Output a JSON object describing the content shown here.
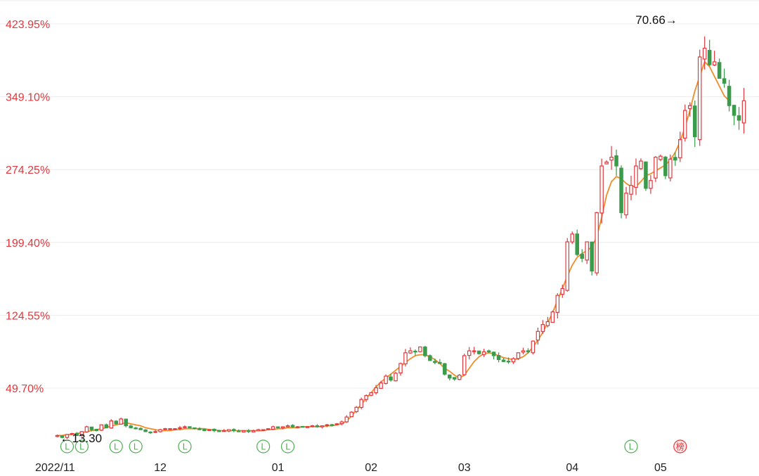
{
  "chart_data": {
    "type": "candlestick",
    "y_axis": {
      "ticks": [
        "423.95%",
        "349.10%",
        "274.25%",
        "199.40%",
        "124.55%",
        "49.70%"
      ],
      "tick_values": [
        423.95,
        349.1,
        274.25,
        199.4,
        124.55,
        49.7
      ],
      "ylim": [
        -18.0,
        447.0
      ],
      "color": "#e0393e"
    },
    "x_axis": {
      "labels": [
        "2022/11",
        "12",
        "01",
        "02",
        "03",
        "04",
        "05"
      ],
      "label_indices": [
        0,
        21,
        45,
        64,
        83,
        105,
        123
      ]
    },
    "annotations": {
      "max_label": "70.66→",
      "max_index": 127,
      "min_label": "←13.30",
      "min_index": 0
    },
    "colors": {
      "up": "#e0393e",
      "down": "#3a9b4b",
      "ma": "#f28c28",
      "grid": "#ececec"
    },
    "ma_name": "",
    "candles": [
      [
        0,
        0,
        1,
        -2,
        1
      ],
      [
        0,
        0,
        1,
        -2,
        -1
      ],
      [
        0,
        0,
        1,
        -2,
        2
      ],
      [
        0,
        0,
        1,
        -2,
        3
      ],
      [
        0,
        0,
        1,
        -2,
        1
      ],
      [
        0,
        0,
        1,
        -2,
        5
      ],
      [
        0,
        0,
        1,
        -2,
        10
      ],
      [
        0,
        0,
        1,
        -2,
        7
      ],
      [
        0,
        0,
        1,
        -2,
        6
      ],
      [
        0,
        0,
        1,
        -2,
        12
      ],
      [
        0,
        0,
        1,
        -2,
        9
      ],
      [
        0,
        0,
        1,
        -2,
        16
      ],
      [
        0,
        0,
        1,
        -2,
        13
      ],
      [
        0,
        0,
        1,
        -2,
        18
      ],
      [
        0,
        0,
        1,
        -2,
        11
      ],
      [
        0,
        0,
        1,
        -2,
        9
      ],
      [
        0,
        0,
        1,
        -2,
        8
      ],
      [
        0,
        0,
        1,
        -2,
        7
      ],
      [
        0,
        0,
        1,
        -2,
        5
      ],
      [
        0,
        0,
        1,
        -2,
        4
      ],
      [
        0,
        0,
        1,
        -2,
        5
      ],
      [
        0,
        0,
        1,
        -2,
        7
      ],
      [
        0,
        0,
        1,
        -2,
        8
      ],
      [
        0,
        0,
        1,
        -2,
        8
      ],
      [
        0,
        0,
        1,
        -2,
        8
      ],
      [
        0,
        0,
        1,
        -2,
        9
      ],
      [
        0,
        0,
        1,
        -2,
        10
      ],
      [
        0,
        0,
        1,
        -2,
        9
      ],
      [
        0,
        0,
        1,
        -2,
        8
      ],
      [
        0,
        0,
        1,
        -2,
        7
      ],
      [
        0,
        0,
        1,
        -2,
        6
      ],
      [
        0,
        0,
        1,
        -2,
        7
      ],
      [
        0,
        0,
        1,
        -2,
        6
      ],
      [
        0,
        0,
        1,
        -2,
        5
      ],
      [
        0,
        0,
        1,
        -2,
        6
      ],
      [
        0,
        0,
        1,
        -2,
        7
      ],
      [
        0,
        0,
        1,
        -2,
        6
      ],
      [
        0,
        0,
        1,
        -2,
        5
      ],
      [
        0,
        0,
        1,
        -2,
        6
      ],
      [
        0,
        0,
        1,
        -2,
        5
      ],
      [
        0,
        0,
        1,
        -2,
        6
      ],
      [
        0,
        0,
        1,
        -2,
        7
      ],
      [
        0,
        0,
        1,
        -2,
        7
      ],
      [
        0,
        0,
        1,
        -2,
        8
      ],
      [
        0,
        0,
        1,
        -2,
        10
      ],
      [
        0,
        0,
        1,
        -2,
        9
      ],
      [
        0,
        0,
        1,
        -2,
        10
      ],
      [
        0,
        0,
        1,
        -2,
        11
      ],
      [
        0,
        0,
        1,
        -2,
        10
      ],
      [
        0,
        0,
        1,
        -2,
        10
      ],
      [
        0,
        0,
        1,
        -2,
        10
      ],
      [
        0,
        0,
        1,
        -2,
        10
      ],
      [
        0,
        0,
        1,
        -2,
        11
      ],
      [
        0,
        0,
        1,
        -2,
        10
      ],
      [
        0,
        0,
        1,
        -2,
        11
      ],
      [
        0,
        0,
        1,
        -2,
        12
      ],
      [
        0,
        0,
        1,
        -2,
        12
      ],
      [
        0,
        0,
        1,
        -2,
        13
      ],
      [
        0,
        0,
        1,
        -2,
        15
      ],
      [
        0,
        0,
        1,
        -2,
        20
      ],
      [
        0,
        0,
        1,
        -2,
        25
      ],
      [
        0,
        0,
        1,
        -2,
        30
      ],
      [
        0,
        0,
        1,
        -2,
        38
      ],
      [
        0,
        0,
        1,
        -2,
        42
      ],
      [
        0,
        0,
        1,
        -2,
        45
      ],
      [
        0,
        0,
        1,
        -2,
        50
      ],
      [
        0,
        0,
        1,
        -2,
        55
      ],
      [
        0,
        0,
        1,
        -2,
        62
      ],
      [
        0,
        0,
        1,
        -2,
        58
      ],
      [
        0,
        0,
        1,
        -2,
        65
      ],
      [
        0,
        0,
        1,
        -2,
        75
      ],
      [
        0,
        0,
        1,
        -2,
        86
      ],
      [
        0,
        0,
        1,
        -2,
        88
      ],
      [
        0,
        0,
        1,
        -2,
        87
      ],
      [
        0,
        0,
        1,
        -2,
        92
      ],
      [
        0,
        0,
        1,
        -2,
        83
      ],
      [
        0,
        0,
        1,
        -2,
        78
      ],
      [
        0,
        0,
        1,
        -2,
        76
      ],
      [
        0,
        0,
        1,
        -2,
        75
      ],
      [
        0,
        0,
        1,
        -2,
        64
      ],
      [
        0,
        0,
        1,
        -2,
        60
      ],
      [
        0,
        0,
        1,
        -2,
        59
      ],
      [
        0,
        0,
        1,
        -2,
        63
      ],
      [
        0,
        0,
        1,
        -2,
        83
      ],
      [
        0,
        0,
        1,
        -2,
        88
      ],
      [
        0,
        0,
        1,
        -2,
        88
      ],
      [
        0,
        0,
        1,
        -2,
        85
      ],
      [
        0,
        0,
        1,
        -2,
        87
      ],
      [
        0,
        0,
        1,
        -2,
        87
      ],
      [
        0,
        0,
        1,
        -2,
        83
      ],
      [
        0,
        0,
        1,
        -2,
        79
      ],
      [
        0,
        0,
        1,
        -2,
        77
      ],
      [
        0,
        0,
        1,
        -2,
        77
      ],
      [
        0,
        0,
        1,
        -2,
        80
      ],
      [
        0,
        0,
        1,
        -2,
        86
      ],
      [
        0,
        0,
        1,
        -2,
        88
      ],
      [
        0,
        0,
        1,
        -2,
        87
      ],
      [
        0,
        0,
        1,
        -2,
        98
      ],
      [
        0,
        0,
        1,
        -2,
        108
      ],
      [
        0,
        0,
        1,
        -2,
        115
      ],
      [
        0,
        0,
        1,
        -2,
        118
      ],
      [
        0,
        0,
        1,
        -2,
        128
      ],
      [
        0,
        0,
        1,
        -2,
        145
      ],
      [
        0,
        0,
        1,
        -2,
        152
      ],
      [
        0,
        0,
        1,
        -2,
        200
      ],
      [
        0,
        0,
        1,
        -2,
        208
      ],
      [
        0,
        0,
        1,
        -2,
        187
      ],
      [
        0,
        0,
        1,
        -2,
        183
      ],
      [
        0,
        0,
        1,
        -2,
        200
      ],
      [
        0,
        0,
        1,
        -2,
        170
      ],
      [
        0,
        0,
        1,
        -2,
        230
      ],
      [
        0,
        0,
        1,
        -2,
        278
      ],
      [
        0,
        0,
        1,
        -2,
        282
      ],
      [
        0,
        0,
        1,
        -2,
        287
      ],
      [
        0,
        0,
        1,
        -2,
        278
      ],
      [
        0,
        0,
        1,
        -2,
        230
      ],
      [
        0,
        0,
        1,
        -2,
        250
      ],
      [
        0,
        0,
        1,
        -2,
        258
      ],
      [
        0,
        0,
        1,
        -2,
        278
      ],
      [
        0,
        0,
        1,
        -2,
        283
      ],
      [
        0,
        0,
        1,
        -2,
        255
      ],
      [
        0,
        0,
        1,
        -2,
        263
      ],
      [
        0,
        0,
        1,
        -2,
        287
      ],
      [
        0,
        0,
        1,
        -2,
        288
      ],
      [
        0,
        0,
        1,
        -2,
        268
      ],
      [
        0,
        0,
        1,
        -2,
        285
      ],
      [
        0,
        0,
        1,
        -2,
        284
      ],
      [
        0,
        0,
        1,
        -2,
        305
      ],
      [
        0,
        0,
        1,
        -2,
        335
      ],
      [
        0,
        0,
        1,
        -2,
        340
      ],
      [
        0,
        0,
        1,
        -2,
        308
      ],
      [
        0,
        0,
        1,
        -2,
        390
      ],
      [
        0,
        0,
        1,
        -2,
        399
      ],
      [
        0,
        0,
        1,
        -2,
        382
      ],
      [
        0,
        0,
        1,
        -2,
        385
      ],
      [
        0,
        0,
        1,
        -2,
        368
      ],
      [
        0,
        0,
        1,
        -2,
        363
      ],
      [
        0,
        0,
        1,
        -2,
        340
      ],
      [
        0,
        0,
        1,
        -2,
        330
      ],
      [
        0,
        0,
        1,
        -2,
        325
      ],
      [
        0,
        0,
        1,
        -2,
        345
      ]
    ],
    "ma": [
      1,
      1,
      2,
      2,
      3,
      4,
      5,
      6,
      7,
      8,
      9,
      11,
      12,
      13,
      14,
      13,
      12,
      11,
      9,
      8,
      7,
      6,
      6,
      6,
      7,
      7,
      8,
      8,
      8,
      8,
      8,
      7,
      7,
      6,
      6,
      6,
      6,
      6,
      6,
      6,
      6,
      6,
      6,
      7,
      7,
      8,
      8,
      9,
      9,
      9,
      10,
      10,
      10,
      10,
      10,
      11,
      11,
      12,
      13,
      16,
      21,
      27,
      33,
      39,
      45,
      51,
      56,
      60,
      64,
      68,
      72,
      76,
      80,
      83,
      84,
      84,
      82,
      79,
      75,
      70,
      67,
      63,
      60,
      63,
      70,
      77,
      82,
      85,
      86,
      85,
      83,
      81,
      80,
      79,
      80,
      82,
      86,
      92,
      99,
      107,
      117,
      127,
      140,
      152,
      165,
      176,
      184,
      188,
      191,
      195,
      205,
      225,
      248,
      262,
      267,
      265,
      260,
      257,
      257,
      262,
      268,
      270,
      273,
      276,
      279,
      284,
      292,
      303,
      318,
      335,
      355,
      370,
      385,
      380,
      370,
      360,
      350,
      345
    ],
    "markers": [
      {
        "index": 2,
        "label": "L"
      },
      {
        "index": 5,
        "label": "L"
      },
      {
        "index": 12,
        "label": "L"
      },
      {
        "index": 16,
        "label": "L"
      },
      {
        "index": 26,
        "label": "L"
      },
      {
        "index": 42,
        "label": "L"
      },
      {
        "index": 47,
        "label": "L"
      },
      {
        "index": 117,
        "label": "L"
      },
      {
        "index": 127,
        "label": "榜",
        "kind": "list"
      }
    ]
  }
}
